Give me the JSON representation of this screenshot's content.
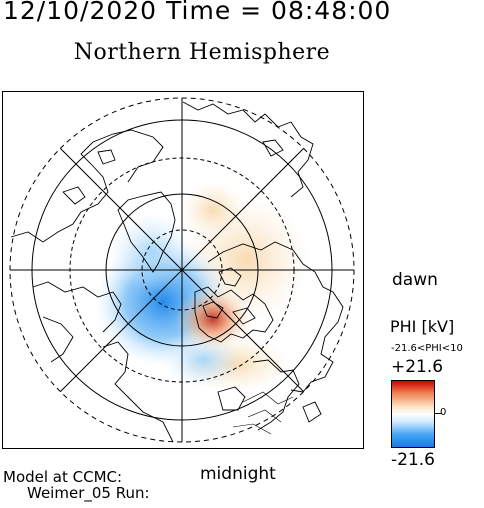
{
  "header": {
    "datetime": "12/10/2020 Time = 08:48:00",
    "hemisphere": "Northern Hemisphere"
  },
  "map": {
    "dawn_label": "dawn",
    "midnight_label": "midnight"
  },
  "colorbar": {
    "quantity": "PHI [kV]",
    "range_text": "-21.6<PHI<10",
    "max_label": "+21.6",
    "zero_label": "0",
    "min_label": "-21.6",
    "colors": {
      "max": "#cc0000",
      "zero": "#ffffff",
      "min": "#1a7ae6"
    }
  },
  "footer": {
    "line1": "Model at CCMC:",
    "line2": "Weimer_05 Run:"
  }
}
